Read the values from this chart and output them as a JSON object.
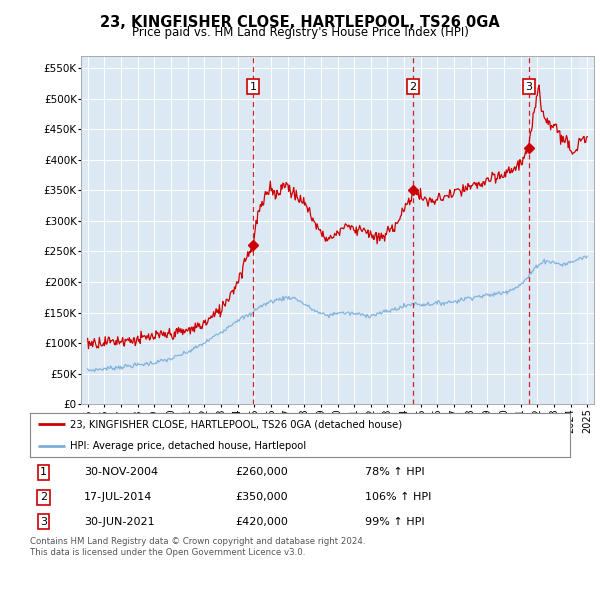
{
  "title": "23, KINGFISHER CLOSE, HARTLEPOOL, TS26 0GA",
  "subtitle": "Price paid vs. HM Land Registry's House Price Index (HPI)",
  "legend_label_red": "23, KINGFISHER CLOSE, HARTLEPOOL, TS26 0GA (detached house)",
  "legend_label_blue": "HPI: Average price, detached house, Hartlepool",
  "footer_line1": "Contains HM Land Registry data © Crown copyright and database right 2024.",
  "footer_line2": "This data is licensed under the Open Government Licence v3.0.",
  "transactions": [
    {
      "num": 1,
      "date": "30-NOV-2004",
      "price": 260000,
      "pct": "78%",
      "date_dec": 2004.92
    },
    {
      "num": 2,
      "date": "17-JUL-2014",
      "price": 350000,
      "pct": "106%",
      "date_dec": 2014.54
    },
    {
      "num": 3,
      "date": "30-JUN-2021",
      "price": 420000,
      "pct": "99%",
      "date_dec": 2021.5
    }
  ],
  "ylim": [
    0,
    570000
  ],
  "yticks": [
    0,
    50000,
    100000,
    150000,
    200000,
    250000,
    300000,
    350000,
    400000,
    450000,
    500000,
    550000
  ],
  "xlim_start": 1994.6,
  "xlim_end": 2025.4,
  "background_color": "#dce9f5",
  "red_color": "#cc0000",
  "blue_color": "#7aadd6",
  "grid_color": "#ffffff",
  "hpi_blue_anchors": [
    [
      1995.0,
      55000
    ],
    [
      1996.0,
      58000
    ],
    [
      1997.0,
      61000
    ],
    [
      1998.0,
      64000
    ],
    [
      1999.0,
      68000
    ],
    [
      2000.0,
      74000
    ],
    [
      2001.0,
      85000
    ],
    [
      2002.0,
      100000
    ],
    [
      2003.0,
      118000
    ],
    [
      2004.0,
      138000
    ],
    [
      2004.92,
      148000
    ],
    [
      2005.0,
      155000
    ],
    [
      2006.0,
      168000
    ],
    [
      2007.0,
      175000
    ],
    [
      2007.5,
      173000
    ],
    [
      2008.5,
      155000
    ],
    [
      2009.0,
      148000
    ],
    [
      2009.5,
      145000
    ],
    [
      2010.0,
      150000
    ],
    [
      2011.0,
      148000
    ],
    [
      2012.0,
      145000
    ],
    [
      2013.0,
      152000
    ],
    [
      2014.0,
      160000
    ],
    [
      2014.54,
      165000
    ],
    [
      2015.0,
      163000
    ],
    [
      2016.0,
      165000
    ],
    [
      2017.0,
      168000
    ],
    [
      2018.0,
      175000
    ],
    [
      2019.0,
      178000
    ],
    [
      2020.0,
      183000
    ],
    [
      2021.0,
      195000
    ],
    [
      2021.5,
      210000
    ],
    [
      2022.0,
      228000
    ],
    [
      2022.5,
      235000
    ],
    [
      2023.0,
      232000
    ],
    [
      2023.5,
      228000
    ],
    [
      2024.0,
      232000
    ],
    [
      2024.5,
      238000
    ],
    [
      2025.0,
      242000
    ]
  ],
  "hpi_red_anchors": [
    [
      1995.0,
      100000
    ],
    [
      1996.0,
      102000
    ],
    [
      1997.0,
      104000
    ],
    [
      1998.0,
      106000
    ],
    [
      1999.0,
      110000
    ],
    [
      2000.0,
      115000
    ],
    [
      2001.0,
      120000
    ],
    [
      2002.0,
      132000
    ],
    [
      2003.0,
      155000
    ],
    [
      2004.0,
      200000
    ],
    [
      2004.5,
      240000
    ],
    [
      2004.92,
      260000
    ],
    [
      2005.2,
      310000
    ],
    [
      2005.8,
      345000
    ],
    [
      2006.0,
      360000
    ],
    [
      2006.3,
      340000
    ],
    [
      2006.6,
      355000
    ],
    [
      2007.0,
      360000
    ],
    [
      2007.2,
      350000
    ],
    [
      2007.5,
      340000
    ],
    [
      2008.0,
      330000
    ],
    [
      2008.5,
      305000
    ],
    [
      2009.0,
      280000
    ],
    [
      2009.5,
      270000
    ],
    [
      2010.0,
      280000
    ],
    [
      2010.5,
      295000
    ],
    [
      2011.0,
      285000
    ],
    [
      2011.5,
      290000
    ],
    [
      2012.0,
      275000
    ],
    [
      2012.5,
      270000
    ],
    [
      2013.0,
      280000
    ],
    [
      2013.5,
      295000
    ],
    [
      2014.0,
      320000
    ],
    [
      2014.3,
      330000
    ],
    [
      2014.54,
      350000
    ],
    [
      2014.8,
      345000
    ],
    [
      2015.0,
      340000
    ],
    [
      2015.5,
      330000
    ],
    [
      2016.0,
      335000
    ],
    [
      2016.5,
      340000
    ],
    [
      2017.0,
      345000
    ],
    [
      2017.5,
      350000
    ],
    [
      2018.0,
      355000
    ],
    [
      2018.5,
      360000
    ],
    [
      2019.0,
      365000
    ],
    [
      2019.5,
      370000
    ],
    [
      2020.0,
      375000
    ],
    [
      2020.5,
      385000
    ],
    [
      2021.0,
      395000
    ],
    [
      2021.5,
      420000
    ],
    [
      2021.8,
      475000
    ],
    [
      2022.0,
      510000
    ],
    [
      2022.1,
      530000
    ],
    [
      2022.2,
      490000
    ],
    [
      2022.5,
      470000
    ],
    [
      2022.8,
      455000
    ],
    [
      2023.0,
      460000
    ],
    [
      2023.3,
      445000
    ],
    [
      2023.5,
      430000
    ],
    [
      2023.8,
      435000
    ],
    [
      2024.0,
      420000
    ],
    [
      2024.3,
      415000
    ],
    [
      2024.5,
      430000
    ],
    [
      2025.0,
      430000
    ]
  ]
}
